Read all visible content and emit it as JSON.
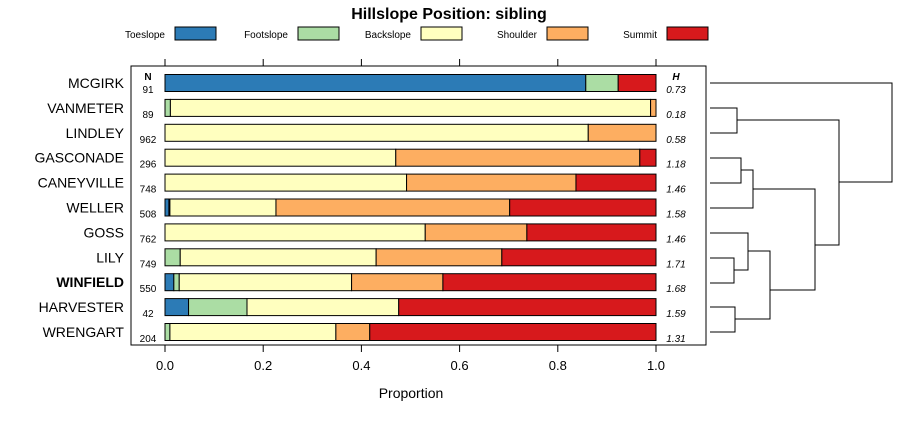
{
  "chart_data": {
    "type": "bar",
    "stacked": "horizontal-proportion",
    "title": "Hillslope Position: sibling",
    "xlabel": "Proportion",
    "ylabel": "",
    "xlim": [
      0,
      1
    ],
    "xticks": [
      "0.0",
      "0.2",
      "0.4",
      "0.6",
      "0.8",
      "1.0"
    ],
    "xtick_values": [
      0,
      0.2,
      0.4,
      0.6,
      0.8,
      1.0
    ],
    "n_header": "N",
    "h_header": "H",
    "legend_position": "top",
    "series": [
      {
        "name": "Toeslope",
        "color": "#2C7BB6"
      },
      {
        "name": "Footslope",
        "color": "#ABDDA4"
      },
      {
        "name": "Backslope",
        "color": "#FFFFBF"
      },
      {
        "name": "Shoulder",
        "color": "#FDAE61"
      },
      {
        "name": "Summit",
        "color": "#D7191C"
      }
    ],
    "categories": [
      "MCGIRK",
      "VANMETER",
      "LINDLEY",
      "GASCONADE",
      "CANEYVILLE",
      "WELLER",
      "GOSS",
      "LILY",
      "WINFIELD",
      "HARVESTER",
      "WRENGART"
    ],
    "highlight": "WINFIELD",
    "rows": [
      {
        "label": "MCGIRK",
        "n": "91",
        "h": "0.73",
        "values": [
          0.857,
          0.066,
          0.0,
          0.0,
          0.077
        ]
      },
      {
        "label": "VANMETER",
        "n": "89",
        "h": "0.18",
        "values": [
          0.0,
          0.011,
          0.978,
          0.011,
          0.0
        ]
      },
      {
        "label": "LINDLEY",
        "n": "962",
        "h": "0.58",
        "values": [
          0.0,
          0.0,
          0.862,
          0.138,
          0.0
        ]
      },
      {
        "label": "GASCONADE",
        "n": "296",
        "h": "1.18",
        "values": [
          0.0,
          0.0,
          0.47,
          0.497,
          0.033
        ]
      },
      {
        "label": "CANEYVILLE",
        "n": "748",
        "h": "1.46",
        "values": [
          0.0,
          0.0,
          0.492,
          0.345,
          0.163
        ]
      },
      {
        "label": "WELLER",
        "n": "508",
        "h": "1.58",
        "values": [
          0.008,
          0.002,
          0.216,
          0.476,
          0.298
        ]
      },
      {
        "label": "GOSS",
        "n": "762",
        "h": "1.46",
        "values": [
          0.0,
          0.0,
          0.53,
          0.207,
          0.263
        ]
      },
      {
        "label": "LILY",
        "n": "749",
        "h": "1.71",
        "values": [
          0.0,
          0.031,
          0.399,
          0.256,
          0.314
        ]
      },
      {
        "label": "WINFIELD",
        "n": "550",
        "h": "1.68",
        "values": [
          0.018,
          0.011,
          0.351,
          0.186,
          0.434
        ]
      },
      {
        "label": "HARVESTER",
        "n": "42",
        "h": "1.59",
        "values": [
          0.048,
          0.119,
          0.309,
          0.0,
          0.524
        ]
      },
      {
        "label": "WRENGART",
        "n": "204",
        "h": "1.31",
        "values": [
          0.0,
          0.01,
          0.338,
          0.069,
          0.583
        ]
      }
    ]
  }
}
